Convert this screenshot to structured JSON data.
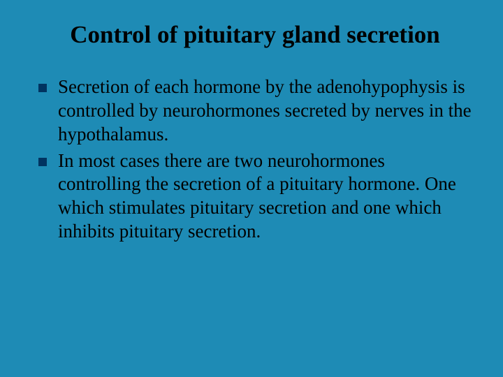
{
  "slide": {
    "title": "Control of pituitary gland secretion",
    "background_color": "#1e8bb5",
    "title_color": "#000000",
    "title_fontsize": 35,
    "bullet_marker_color": "#003360",
    "text_color": "#000000",
    "body_fontsize": 27,
    "bullets": [
      {
        "text": "Secretion of each hormone by the adenohypophysis is controlled  by neurohormones secreted by nerves in the hypothalamus."
      },
      {
        "text": "In most cases there are two neurohormones controlling the secretion of a pituitary hormone. One which stimulates pituitary secretion and one which inhibits pituitary secretion."
      }
    ]
  }
}
